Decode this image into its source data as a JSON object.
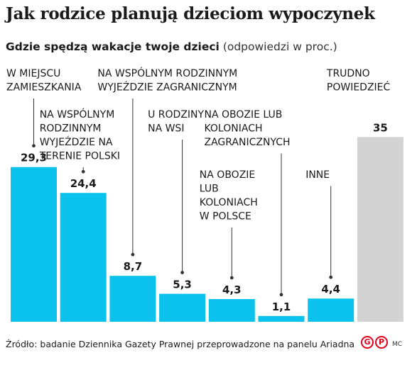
{
  "title": "Jak rodzice planują dzieciom wypoczynek",
  "subtitle_main": "Gdzie spędzą wakacje twoje dzieci",
  "subtitle_note": "(odpowiedzi w proc.)",
  "source": "Źródło: badanie Dziennika Gazety Prawnej przeprowadzone na panelu Ariadna",
  "logo": {
    "letter_1": "G",
    "letter_2": "P"
  },
  "initials": "MC",
  "colors": {
    "primary_bar": "#0ac2ec",
    "highlight_bar": "#d3d3d3",
    "text": "#1a1a1a",
    "leader": "#333333"
  },
  "chart_data": {
    "type": "bar",
    "title": "Jak rodzice planują dzieciom wypoczynek",
    "subtitle": "Gdzie spędzą wakacje twoje dzieci (odpowiedzi w proc.)",
    "xlabel": "",
    "ylabel": "",
    "grid": false,
    "categories": [
      [
        "W MIEJSCU",
        "ZAMIESZKANIA"
      ],
      [
        "NA WSPÓLNYM",
        "RODZINNYM",
        "WYJEŹDZIE NA",
        "TERENIE POLSKI"
      ],
      [
        "NA WSPÓLNYM RODZINNYM",
        "WYJEŹDZIE ZAGRANICZNYM"
      ],
      [
        "U RODZINY",
        "NA WSI"
      ],
      [
        "NA OBOZIE",
        "LUB",
        "KOLONIACH",
        "W POLSCE"
      ],
      [
        "NA OBOZIE LUB",
        "KOLONIACH",
        "ZAGRANICZNYCH"
      ],
      [
        "INNE"
      ],
      [
        "TRUDNO",
        "POWIEDZIEĆ"
      ]
    ],
    "values": [
      29.3,
      24.4,
      8.7,
      5.3,
      4.3,
      1.1,
      4.4,
      35
    ],
    "value_labels": [
      "29,3",
      "24,4",
      "8,7",
      "5,3",
      "4,3",
      "1,1",
      "4,4",
      "35"
    ],
    "highlight_index": 7,
    "ylim": [
      0,
      35
    ]
  }
}
